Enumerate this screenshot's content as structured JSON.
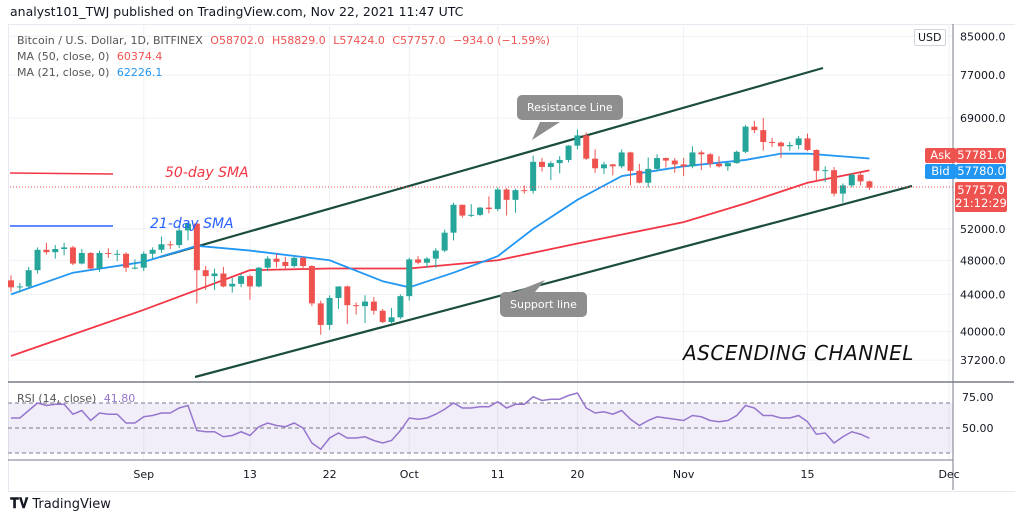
{
  "header": {
    "published": "analyst101_TWJ published on TradingView.com, Nov 22, 2021 11:47 UTC"
  },
  "legend": {
    "symbol": "Bitcoin / U.S. Dollar, 1D, BITFINEX",
    "open": "O58702.0",
    "high": "H58829.0",
    "low": "L57424.0",
    "close": "C57757.0",
    "change": "−934.0 (−1.59%)",
    "ma50_label": "MA (50, close, 0)",
    "ma50_value": "60374.4",
    "ma21_label": "MA (21, close, 0)",
    "ma21_value": "62226.1"
  },
  "price_axis": {
    "currency": "USD",
    "ticks": [
      "85000.0",
      "77000.0",
      "69000.0",
      "52000.0",
      "48000.0",
      "44000.0",
      "40000.0",
      "37200.0"
    ]
  },
  "quote": {
    "ask_label": "Ask",
    "ask": "57781.0",
    "bid_label": "Bid",
    "bid": "57780.0",
    "last": "57757.0",
    "countdown": "21:12:29"
  },
  "annotations": {
    "sma50": "50-day SMA",
    "sma21": "21-day SMA",
    "resistance": "Resistance Line",
    "support": "Support line",
    "title": "ASCENDING CHANNEL"
  },
  "rsi": {
    "label": "RSI (14, close)",
    "value": "41.80",
    "ticks": [
      "75.00",
      "50.00"
    ]
  },
  "x_axis": {
    "ticks": [
      {
        "label": "Sep",
        "date": "2021-09-01"
      },
      {
        "label": "13",
        "date": "2021-09-13"
      },
      {
        "label": "22",
        "date": "2021-09-22"
      },
      {
        "label": "Oct",
        "date": "2021-10-01"
      },
      {
        "label": "11",
        "date": "2021-10-11"
      },
      {
        "label": "20",
        "date": "2021-10-20"
      },
      {
        "label": "Nov",
        "date": "2021-11-01"
      },
      {
        "label": "15",
        "date": "2021-11-15"
      },
      {
        "label": "Dec",
        "date": "2021-12-01"
      }
    ]
  },
  "footer": {
    "brand": "TradingView"
  },
  "colors": {
    "up": "#26a69a",
    "down": "#ef5350",
    "ma50": "#f23645",
    "ma21": "#2196f3",
    "rsi": "#9575cd",
    "channel": "#1b4d3e"
  },
  "chart_data": {
    "type": "candlestick",
    "scale": "log",
    "first_date": "2021-08-17",
    "last_date": "2021-11-22",
    "ylim": [
      36000,
      86000
    ],
    "candles": [
      [
        45600,
        46200,
        44300,
        44800
      ],
      [
        44800,
        45300,
        44200,
        44900
      ],
      [
        44900,
        47200,
        44600,
        46800
      ],
      [
        46800,
        49600,
        46400,
        49300
      ],
      [
        49300,
        50200,
        48700,
        49000
      ],
      [
        49000,
        49900,
        48200,
        49400
      ],
      [
        49400,
        50200,
        48600,
        49600
      ],
      [
        49600,
        49800,
        47400,
        47600
      ],
      [
        47600,
        49400,
        47500,
        48900
      ],
      [
        48900,
        49000,
        46900,
        47000
      ],
      [
        47000,
        49200,
        46600,
        48900
      ],
      [
        48900,
        49500,
        48300,
        48800
      ],
      [
        48800,
        49300,
        47900,
        48800
      ],
      [
        48800,
        49000,
        46600,
        47100
      ],
      [
        47100,
        48100,
        46900,
        47100
      ],
      [
        47100,
        49100,
        46700,
        48800
      ],
      [
        48800,
        49600,
        48200,
        49300
      ],
      [
        49300,
        51000,
        48900,
        50000
      ],
      [
        50000,
        50400,
        49400,
        49900
      ],
      [
        49900,
        52100,
        49500,
        51800
      ],
      [
        51800,
        52900,
        50500,
        52700
      ],
      [
        52700,
        52800,
        43000,
        46800
      ],
      [
        46800,
        47300,
        44500,
        46100
      ],
      [
        46100,
        47000,
        44500,
        46400
      ],
      [
        46400,
        47200,
        44800,
        44900
      ],
      [
        44900,
        45900,
        44200,
        45200
      ],
      [
        45200,
        46400,
        44800,
        46100
      ],
      [
        46100,
        46300,
        43400,
        44900
      ],
      [
        44900,
        47200,
        44800,
        47100
      ],
      [
        47100,
        48500,
        46700,
        48200
      ],
      [
        48200,
        48800,
        47100,
        47800
      ],
      [
        47800,
        48400,
        47000,
        47300
      ],
      [
        47300,
        48400,
        47100,
        48300
      ],
      [
        48300,
        48400,
        46900,
        47300
      ],
      [
        47300,
        47400,
        42700,
        43000
      ],
      [
        43000,
        43300,
        39700,
        40700
      ],
      [
        40700,
        43900,
        40200,
        43600
      ],
      [
        43600,
        44900,
        42400,
        44900
      ],
      [
        44900,
        45000,
        40800,
        42800
      ],
      [
        42800,
        43100,
        41800,
        42700
      ],
      [
        42700,
        43900,
        40900,
        43200
      ],
      [
        43200,
        43700,
        41800,
        42200
      ],
      [
        42200,
        42400,
        40900,
        41000
      ],
      [
        41000,
        42500,
        40800,
        41500
      ],
      [
        41500,
        44000,
        41300,
        43800
      ],
      [
        43800,
        48300,
        43300,
        48100
      ],
      [
        48100,
        48500,
        47500,
        47700
      ],
      [
        47700,
        48400,
        47100,
        48200
      ],
      [
        48200,
        49500,
        47100,
        49200
      ],
      [
        49200,
        51900,
        49000,
        51500
      ],
      [
        51500,
        55600,
        50500,
        55300
      ],
      [
        55300,
        55300,
        53500,
        53800
      ],
      [
        53800,
        55400,
        53600,
        53900
      ],
      [
        53900,
        55000,
        53700,
        54900
      ],
      [
        54900,
        56500,
        54100,
        54700
      ],
      [
        54700,
        57800,
        54400,
        57500
      ],
      [
        57500,
        57700,
        53800,
        56000
      ],
      [
        56000,
        57600,
        54200,
        57400
      ],
      [
        57400,
        58100,
        56900,
        57300
      ],
      [
        57300,
        62700,
        56900,
        61700
      ],
      [
        61700,
        62300,
        60200,
        60900
      ],
      [
        60900,
        61800,
        58900,
        61500
      ],
      [
        61500,
        62600,
        59900,
        62000
      ],
      [
        62000,
        64400,
        61600,
        64300
      ],
      [
        64300,
        67000,
        63700,
        66000
      ],
      [
        66000,
        66500,
        62000,
        62200
      ],
      [
        62200,
        63700,
        60000,
        60700
      ],
      [
        60700,
        61700,
        59800,
        61300
      ],
      [
        61300,
        61400,
        59600,
        61000
      ],
      [
        61000,
        63700,
        60700,
        63200
      ],
      [
        63200,
        63300,
        58100,
        60300
      ],
      [
        60300,
        61400,
        58400,
        58500
      ],
      [
        58500,
        62400,
        57800,
        60600
      ],
      [
        60600,
        62900,
        60200,
        62300
      ],
      [
        62300,
        62400,
        60800,
        61900
      ],
      [
        61900,
        62300,
        60000,
        61300
      ],
      [
        61300,
        62300,
        59500,
        61000
      ],
      [
        61000,
        64200,
        60700,
        63200
      ],
      [
        63200,
        63500,
        60400,
        62900
      ],
      [
        62900,
        63100,
        60800,
        61400
      ],
      [
        61400,
        62600,
        60800,
        61000
      ],
      [
        61000,
        61600,
        60300,
        61500
      ],
      [
        61500,
        63500,
        61400,
        63300
      ],
      [
        63300,
        67800,
        63100,
        67500
      ],
      [
        67500,
        68500,
        66400,
        66900
      ],
      [
        66900,
        69000,
        63500,
        64900
      ],
      [
        64900,
        65600,
        64100,
        64800
      ],
      [
        64800,
        65000,
        62300,
        64200
      ],
      [
        64200,
        64900,
        63500,
        64400
      ],
      [
        64400,
        65900,
        63700,
        65500
      ],
      [
        65500,
        66300,
        63400,
        63600
      ],
      [
        63600,
        63700,
        58600,
        60300
      ],
      [
        60300,
        61000,
        58600,
        60400
      ],
      [
        60400,
        60900,
        56500,
        56900
      ],
      [
        56900,
        58400,
        55600,
        58100
      ],
      [
        58100,
        59900,
        57800,
        59700
      ],
      [
        59700,
        60000,
        58100,
        58700
      ],
      [
        58702,
        58829,
        57424,
        57757
      ]
    ],
    "ma21": [
      [
        0,
        44000
      ],
      [
        7,
        46500
      ],
      [
        15,
        47800
      ],
      [
        21,
        49800
      ],
      [
        27,
        49200
      ],
      [
        36,
        48000
      ],
      [
        42,
        45500
      ],
      [
        45,
        44800
      ],
      [
        50,
        46500
      ],
      [
        55,
        48500
      ],
      [
        59,
        52000
      ],
      [
        64,
        56000
      ],
      [
        69,
        59500
      ],
      [
        76,
        61000
      ],
      [
        83,
        62000
      ],
      [
        87,
        63000
      ],
      [
        90,
        63000
      ],
      [
        97,
        62226
      ]
    ],
    "ma50": [
      [
        0,
        37600
      ],
      [
        15,
        42300
      ],
      [
        27,
        46800
      ],
      [
        36,
        47000
      ],
      [
        45,
        47000
      ],
      [
        55,
        48000
      ],
      [
        64,
        50100
      ],
      [
        76,
        52900
      ],
      [
        83,
        55500
      ],
      [
        90,
        58500
      ],
      [
        97,
        60374
      ]
    ],
    "rsi": [
      58,
      58,
      64,
      70,
      68,
      69,
      69,
      61,
      64,
      56,
      62,
      61,
      61,
      54,
      54,
      59,
      60,
      62,
      62,
      66,
      68,
      48,
      47,
      47,
      43,
      44,
      47,
      44,
      51,
      54,
      52,
      51,
      54,
      50,
      38,
      33,
      42,
      46,
      42,
      42,
      43,
      40,
      38,
      40,
      48,
      58,
      57,
      58,
      61,
      65,
      70,
      66,
      66,
      67,
      67,
      71,
      66,
      69,
      69,
      75,
      72,
      73,
      73,
      76,
      78,
      66,
      62,
      63,
      61,
      64,
      57,
      52,
      56,
      59,
      58,
      57,
      56,
      60,
      59,
      56,
      55,
      56,
      60,
      68,
      66,
      60,
      60,
      58,
      58,
      60,
      55,
      45,
      46,
      38,
      43,
      47,
      45,
      41.8
    ],
    "rsi_levels": [
      70,
      50,
      30
    ]
  }
}
